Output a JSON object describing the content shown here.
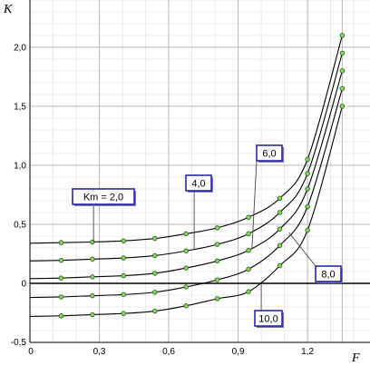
{
  "chart_data": {
    "type": "line",
    "title": "",
    "xlabel": "F",
    "ylabel": "K",
    "xlim": [
      0,
      1.47
    ],
    "ylim": [
      -0.5,
      2.4
    ],
    "x_ticks": [
      0,
      0.3,
      0.6,
      0.9,
      1.2
    ],
    "x_tick_labels": [
      "0",
      "0,3",
      "0,6",
      "0,9",
      "1,2"
    ],
    "y_ticks": [
      -0.5,
      0,
      0.5,
      1.0,
      1.5,
      2.0
    ],
    "y_tick_labels": [
      "-0,5",
      "0",
      "0,5",
      "1,0",
      "1,5",
      "2,0"
    ],
    "grid": true,
    "zero_line": true,
    "x_marker": 1.35,
    "colors": {
      "line": "#000000",
      "marker_fill": "#8fd16a",
      "marker_edge": "#2d6b1f",
      "callout_border": "#1a1aa0",
      "callout_shadow": "#7a7ab8",
      "grid": "#b8b8b8",
      "minor_grid": "#dcdcdc"
    },
    "series": [
      {
        "name": "Km = 2,0",
        "x": [
          0,
          0.135,
          0.27,
          0.405,
          0.54,
          0.675,
          0.81,
          0.945,
          1.08,
          1.2,
          1.35
        ],
        "y": [
          0.34,
          0.345,
          0.35,
          0.36,
          0.38,
          0.42,
          0.47,
          0.56,
          0.72,
          1.05,
          2.1
        ]
      },
      {
        "name": "4,0",
        "x": [
          0,
          0.135,
          0.27,
          0.405,
          0.54,
          0.675,
          0.81,
          0.945,
          1.08,
          1.2,
          1.35
        ],
        "y": [
          0.19,
          0.195,
          0.205,
          0.215,
          0.235,
          0.275,
          0.33,
          0.42,
          0.6,
          0.93,
          1.95
        ]
      },
      {
        "name": "6,0",
        "x": [
          0,
          0.135,
          0.27,
          0.405,
          0.54,
          0.675,
          0.81,
          0.945,
          1.08,
          1.2,
          1.35
        ],
        "y": [
          0.04,
          0.045,
          0.055,
          0.065,
          0.085,
          0.13,
          0.19,
          0.28,
          0.46,
          0.8,
          1.8
        ]
      },
      {
        "name": "8,0",
        "x": [
          0,
          0.135,
          0.27,
          0.405,
          0.54,
          0.675,
          0.81,
          0.945,
          1.08,
          1.2,
          1.35
        ],
        "y": [
          -0.12,
          -0.115,
          -0.105,
          -0.095,
          -0.075,
          -0.03,
          0.03,
          0.12,
          0.32,
          0.65,
          1.65
        ]
      },
      {
        "name": "10,0",
        "x": [
          0,
          0.135,
          0.27,
          0.405,
          0.54,
          0.675,
          0.81,
          0.945,
          1.08,
          1.2,
          1.35
        ],
        "y": [
          -0.28,
          -0.275,
          -0.265,
          -0.255,
          -0.235,
          -0.19,
          -0.13,
          -0.07,
          0.15,
          0.45,
          1.5
        ]
      }
    ],
    "callouts": [
      {
        "text": "Km = 2,0",
        "series": 0,
        "x": 0.275
      },
      {
        "text": "4,0",
        "series": 1,
        "x": 0.71
      },
      {
        "text": "6,0",
        "series": 2,
        "x": 0.96
      },
      {
        "text": "8,0",
        "series": 3,
        "x": 1.12
      },
      {
        "text": "10,0",
        "series": 4,
        "x": 1.0
      }
    ]
  }
}
